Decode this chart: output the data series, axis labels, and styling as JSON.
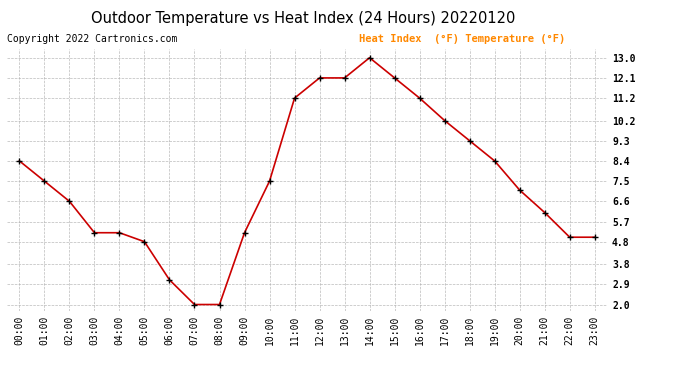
{
  "title": "Outdoor Temperature vs Heat Index (24 Hours) 20220120",
  "copyright": "Copyright 2022 Cartronics.com",
  "legend_label1": "Heat Index  (°F)",
  "legend_label2": "Temperature (°F)",
  "x_labels": [
    "00:00",
    "01:00",
    "02:00",
    "03:00",
    "04:00",
    "05:00",
    "06:00",
    "07:00",
    "08:00",
    "09:00",
    "10:00",
    "11:00",
    "12:00",
    "13:00",
    "14:00",
    "15:00",
    "16:00",
    "17:00",
    "18:00",
    "19:00",
    "20:00",
    "21:00",
    "22:00",
    "23:00"
  ],
  "y_values": [
    8.4,
    7.5,
    6.6,
    5.2,
    5.2,
    4.8,
    3.1,
    2.0,
    2.0,
    5.2,
    7.5,
    11.2,
    12.1,
    12.1,
    13.0,
    12.1,
    11.2,
    10.2,
    9.3,
    8.4,
    7.1,
    6.1,
    5.0,
    5.0
  ],
  "line_color": "#cc0000",
  "marker": "+",
  "marker_color": "#000000",
  "marker_size": 5,
  "marker_linewidth": 1.0,
  "yticks": [
    2.0,
    2.9,
    3.8,
    4.8,
    5.7,
    6.6,
    7.5,
    8.4,
    9.3,
    10.2,
    11.2,
    12.1,
    13.0
  ],
  "ylim": [
    1.7,
    13.4
  ],
  "background_color": "#ffffff",
  "grid_color": "#aaaaaa",
  "legend_color": "#ff8800",
  "title_fontsize": 10.5,
  "copyright_fontsize": 7,
  "tick_fontsize": 7,
  "legend_fontsize": 7.5,
  "linewidth": 1.2
}
